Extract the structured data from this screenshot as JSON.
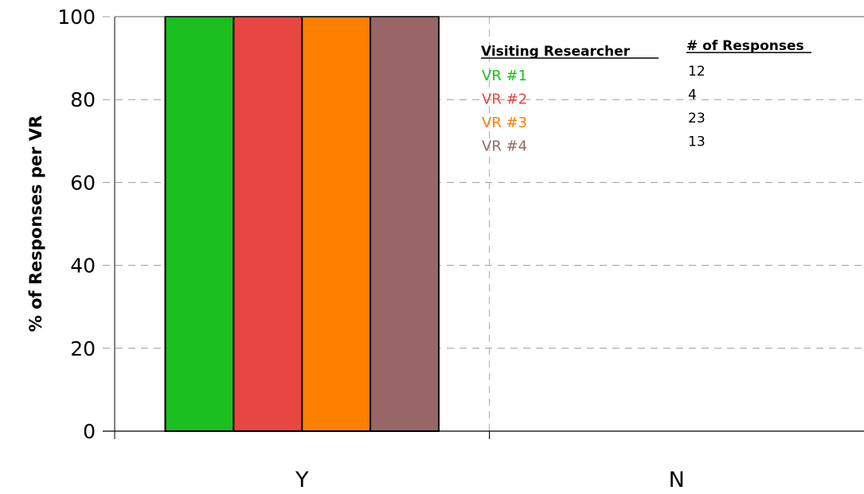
{
  "chart_data": {
    "type": "bar",
    "title": "",
    "xlabel": "",
    "ylabel": "% of Responses per VR",
    "ylim": [
      0,
      100
    ],
    "yticks": [
      0,
      20,
      40,
      60,
      80,
      100
    ],
    "grid": true,
    "categories": [
      "Y",
      "N"
    ],
    "series": [
      {
        "name": "VR #1",
        "color": "#1bbf1f",
        "values": [
          100,
          0
        ],
        "responses": "12"
      },
      {
        "name": "VR #2",
        "color": "#e84643",
        "values": [
          100,
          0
        ],
        "responses": "4"
      },
      {
        "name": "VR #3",
        "color": "#ff7f00",
        "values": [
          100,
          0
        ],
        "responses": "23"
      },
      {
        "name": "VR #4",
        "color": "#986666",
        "values": [
          100,
          0
        ],
        "responses": "13"
      }
    ],
    "legend": {
      "placement": "top-right",
      "name_header": "Visiting Researcher",
      "count_header": "# of Responses"
    }
  }
}
